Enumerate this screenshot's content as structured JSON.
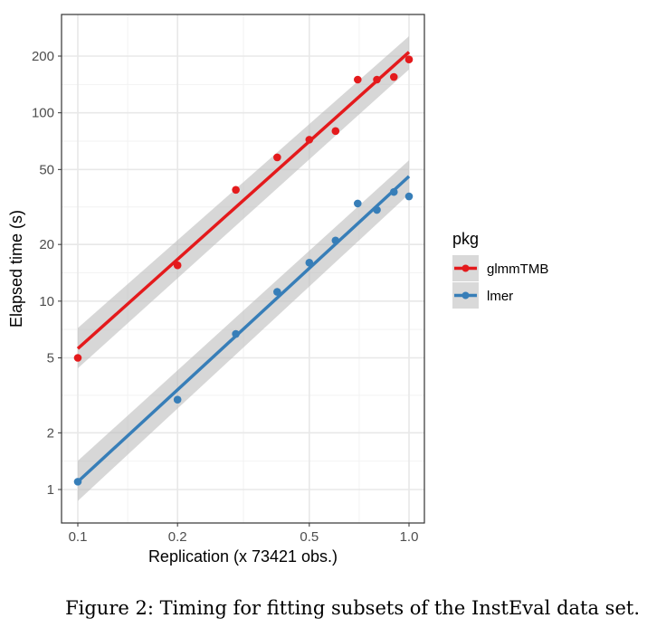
{
  "chart_data": {
    "type": "scatter",
    "xlabel": "Replication (x 73421 obs.)",
    "ylabel": "Elapsed time (s)",
    "x_scale": "log10",
    "y_scale": "log10",
    "xlim": [
      0.1,
      1.0
    ],
    "ylim": [
      0.8,
      300
    ],
    "x_ticks": [
      {
        "value": 0.1,
        "label": "0.1"
      },
      {
        "value": 0.2,
        "label": "0.2"
      },
      {
        "value": 0.5,
        "label": "0.5"
      },
      {
        "value": 1.0,
        "label": "1.0"
      }
    ],
    "y_ticks": [
      {
        "value": 1,
        "label": "1"
      },
      {
        "value": 2,
        "label": "2"
      },
      {
        "value": 5,
        "label": "5"
      },
      {
        "value": 10,
        "label": "10"
      },
      {
        "value": 20,
        "label": "20"
      },
      {
        "value": 50,
        "label": "50"
      },
      {
        "value": 100,
        "label": "100"
      },
      {
        "value": 200,
        "label": "200"
      }
    ],
    "grid": true,
    "legend": {
      "title": "pkg",
      "position": "right"
    },
    "series": [
      {
        "name": "glmmTMB",
        "color": "#e41a1c",
        "points": [
          {
            "x": 0.1,
            "y": 5.0
          },
          {
            "x": 0.2,
            "y": 15.5
          },
          {
            "x": 0.3,
            "y": 39
          },
          {
            "x": 0.4,
            "y": 58
          },
          {
            "x": 0.5,
            "y": 72
          },
          {
            "x": 0.6,
            "y": 80
          },
          {
            "x": 0.7,
            "y": 150
          },
          {
            "x": 0.8,
            "y": 150
          },
          {
            "x": 0.9,
            "y": 155
          },
          {
            "x": 1.0,
            "y": 192
          }
        ],
        "fit": {
          "x": [
            0.1,
            1.0
          ],
          "y": [
            5.6,
            210
          ]
        },
        "band": {
          "x": [
            0.1,
            1.0
          ],
          "lower": [
            4.4,
            170
          ],
          "upper": [
            7.2,
            255
          ]
        }
      },
      {
        "name": "lmer",
        "color": "#377eb8",
        "points": [
          {
            "x": 0.1,
            "y": 1.1
          },
          {
            "x": 0.2,
            "y": 3.0
          },
          {
            "x": 0.3,
            "y": 6.7
          },
          {
            "x": 0.4,
            "y": 11.2
          },
          {
            "x": 0.5,
            "y": 16
          },
          {
            "x": 0.6,
            "y": 21
          },
          {
            "x": 0.7,
            "y": 33
          },
          {
            "x": 0.8,
            "y": 30.5
          },
          {
            "x": 0.9,
            "y": 38
          },
          {
            "x": 1.0,
            "y": 36
          }
        ],
        "fit": {
          "x": [
            0.1,
            1.0
          ],
          "y": [
            1.1,
            46
          ]
        },
        "band": {
          "x": [
            0.1,
            1.0
          ],
          "lower": [
            0.87,
            37
          ],
          "upper": [
            1.42,
            56
          ]
        }
      }
    ]
  },
  "caption": "Figure 2: Timing for fitting subsets of the InstEval data set."
}
